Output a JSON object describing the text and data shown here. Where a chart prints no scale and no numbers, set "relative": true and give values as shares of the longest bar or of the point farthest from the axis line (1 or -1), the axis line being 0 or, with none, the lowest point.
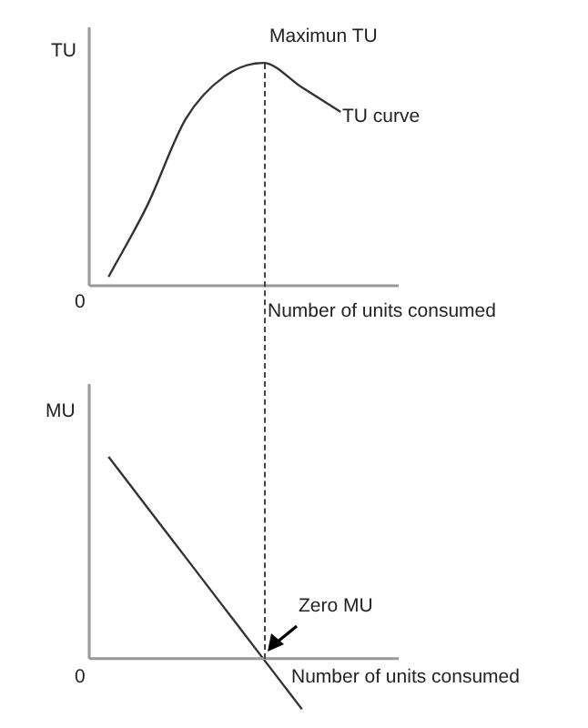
{
  "chart_data": [
    {
      "type": "line",
      "ylabel": "TU",
      "xlabel": "Number of units consumed",
      "relative": true,
      "legend": false,
      "grid": false,
      "marker": "none",
      "line_style": "solid",
      "categories": [
        null,
        null,
        null,
        null,
        null,
        null,
        null,
        null
      ],
      "series": [
        {
          "name": "TU curve",
          "color": "#333333",
          "values": [
            0.04,
            0.36,
            0.75,
            0.94,
            1,
            0.89,
            0.78,
            null
          ]
        }
      ],
      "annotations": [
        "Maximun TU",
        "0"
      ]
    },
    {
      "type": "line",
      "ylabel": "MU",
      "xlabel": "Number of units consumed",
      "relative": true,
      "legend": false,
      "grid": false,
      "marker": "none",
      "line_style": "solid",
      "categories": [
        null,
        null,
        null,
        null,
        null,
        null,
        null,
        null
      ],
      "series": [
        {
          "color": "#333333",
          "values": [
            1,
            0.75,
            0.5,
            0.25,
            0,
            -0.25,
            null,
            null
          ]
        }
      ],
      "annotations": [
        "Zero MU",
        "0"
      ]
    }
  ]
}
